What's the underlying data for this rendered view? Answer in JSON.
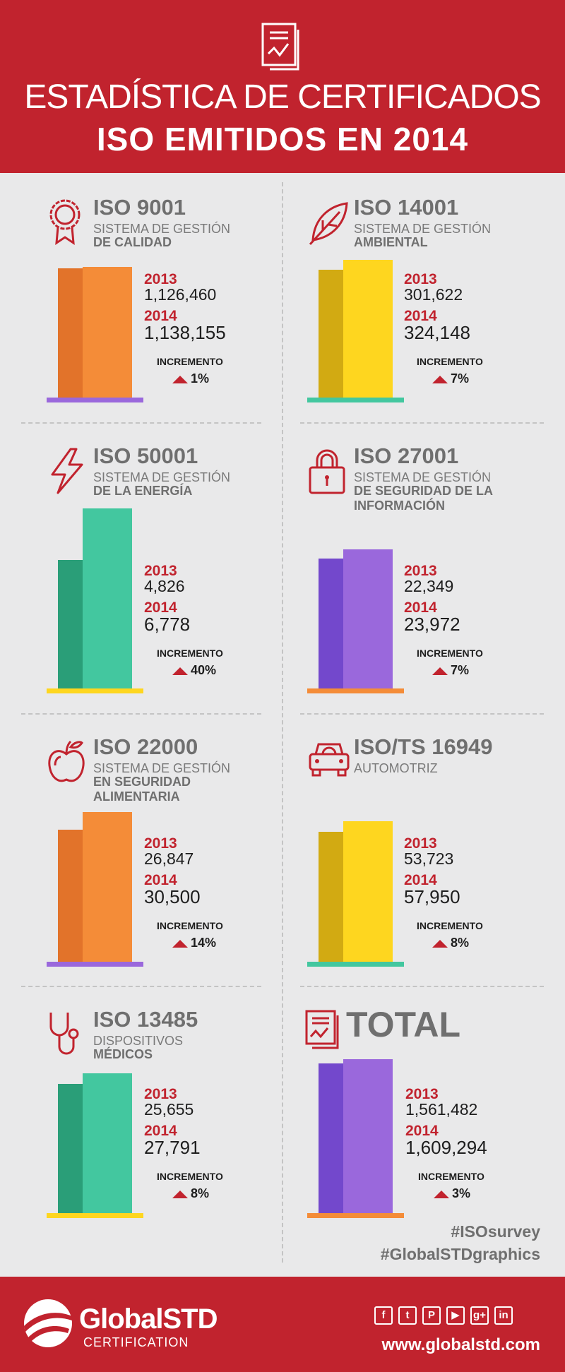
{
  "header": {
    "title_line1": "ESTADÍSTICA DE CERTIFICADOS",
    "title_line2": "ISO EMITIDOS EN 2014",
    "icon": "chart-document-icon"
  },
  "labels": {
    "year1": "2013",
    "year2": "2014",
    "increment": "INCREMENTO"
  },
  "cards": [
    {
      "title": "ISO 9001",
      "sub1": "SISTEMA DE GESTIÓN",
      "sub2": "DE CALIDAD",
      "v2013": "1,126,460",
      "v2014": "1,138,155",
      "pct": "1%",
      "icon": "award-ribbon-icon",
      "color_dark": "#e2732a",
      "color_light": "#f48c38",
      "base_color": "#9a68dc"
    },
    {
      "title": "ISO 14001",
      "sub1": "SISTEMA DE GESTIÓN",
      "sub2": "AMBIENTAL",
      "v2013": "301,622",
      "v2014": "324,148",
      "pct": "7%",
      "icon": "leaf-icon",
      "color_dark": "#d2aa12",
      "color_light": "#fed61f",
      "base_color": "#43c79f"
    },
    {
      "title": "ISO 50001",
      "sub1": "SISTEMA DE GESTIÓN",
      "sub2": "DE LA ENERGÍA",
      "v2013": "4,826",
      "v2014": "6,778",
      "pct": "40%",
      "icon": "lightning-icon",
      "color_dark": "#2a9e78",
      "color_light": "#43c79f",
      "base_color": "#fed61f"
    },
    {
      "title": "ISO 27001",
      "sub1": "SISTEMA DE GESTIÓN",
      "sub2": "DE SEGURIDAD DE LA",
      "sub3": "INFORMACIÓN",
      "v2013": "22,349",
      "v2014": "23,972",
      "pct": "7%",
      "icon": "padlock-icon",
      "color_dark": "#7348cc",
      "color_light": "#9a68dc",
      "base_color": "#f48c38"
    },
    {
      "title": "ISO 22000",
      "sub1": "SISTEMA DE GESTIÓN",
      "sub2": "EN SEGURIDAD",
      "sub3": "ALIMENTARIA",
      "v2013": "26,847",
      "v2014": "30,500",
      "pct": "14%",
      "icon": "apple-icon",
      "color_dark": "#e2732a",
      "color_light": "#f48c38",
      "base_color": "#9a68dc"
    },
    {
      "title": "ISO/TS 16949",
      "sub1": "AUTOMOTRIZ",
      "v2013": "53,723",
      "v2014": "57,950",
      "pct": "8%",
      "icon": "car-icon",
      "color_dark": "#d2aa12",
      "color_light": "#fed61f",
      "base_color": "#43c79f"
    },
    {
      "title": "ISO 13485",
      "sub1": "DISPOSITIVOS",
      "sub2": "MÉDICOS",
      "v2013": "25,655",
      "v2014": "27,791",
      "pct": "8%",
      "icon": "stethoscope-icon",
      "color_dark": "#2a9e78",
      "color_light": "#43c79f",
      "base_color": "#fed61f"
    },
    {
      "title": "TOTAL",
      "v2013": "1,561,482",
      "v2014": "1,609,294",
      "pct": "3%",
      "icon": "chart-document-icon",
      "color_dark": "#7348cc",
      "color_light": "#9a68dc",
      "base_color": "#f48c38"
    }
  ],
  "hashtags": [
    "#ISOsurvey",
    "#GlobalSTDgraphics"
  ],
  "footer": {
    "logo_name": "GlobalSTD",
    "logo_sub": "CERTIFICATION",
    "website": "www.globalstd.com",
    "social": [
      {
        "icon": "facebook-icon",
        "glyph": "f"
      },
      {
        "icon": "twitter-icon",
        "glyph": "t"
      },
      {
        "icon": "pinterest-icon",
        "glyph": "P"
      },
      {
        "icon": "youtube-icon",
        "glyph": "▶"
      },
      {
        "icon": "google-plus-icon",
        "glyph": "g+"
      },
      {
        "icon": "linkedin-icon",
        "glyph": "in"
      }
    ]
  }
}
